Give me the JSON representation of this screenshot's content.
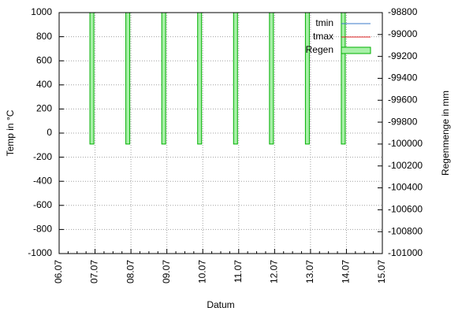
{
  "chart_data": {
    "type": "bar",
    "xlabel": "Datum",
    "ylabel": "Temp in °C",
    "y2label": "Regenmenge in mm",
    "xticks": [
      "06.07",
      "07.07",
      "08.07",
      "09.07",
      "10.07",
      "11.07",
      "12.07",
      "13.07",
      "14.07",
      "15.07"
    ],
    "x": [
      "07.07",
      "08.07",
      "09.07",
      "10.07",
      "11.07",
      "12.07",
      "13.07",
      "14.07"
    ],
    "series": [
      {
        "name": "tmin",
        "color": "#3a78c8",
        "values": [
          null,
          null,
          null,
          null,
          null,
          null,
          null,
          null
        ]
      },
      {
        "name": "tmax",
        "color": "#e02020",
        "values": [
          null,
          null,
          null,
          null,
          null,
          null,
          null,
          null
        ]
      },
      {
        "name": "Regen",
        "color": "#a8f0a8",
        "axis": "y2",
        "values": [
          -100000,
          -100000,
          -100000,
          -100000,
          -100000,
          -100000,
          -100000,
          -100000
        ]
      }
    ],
    "ylim": [
      -1000,
      1000
    ],
    "yticks": [
      -1000,
      -800,
      -600,
      -400,
      -200,
      0,
      200,
      400,
      600,
      800,
      1000
    ],
    "y2lim": [
      -101000,
      -98800
    ],
    "y2ticks": [
      -101000,
      -100800,
      -100600,
      -100400,
      -100200,
      -100000,
      -99800,
      -99600,
      -99400,
      -99200,
      -99000,
      -98800
    ],
    "grid": true,
    "legend": "top-right"
  }
}
